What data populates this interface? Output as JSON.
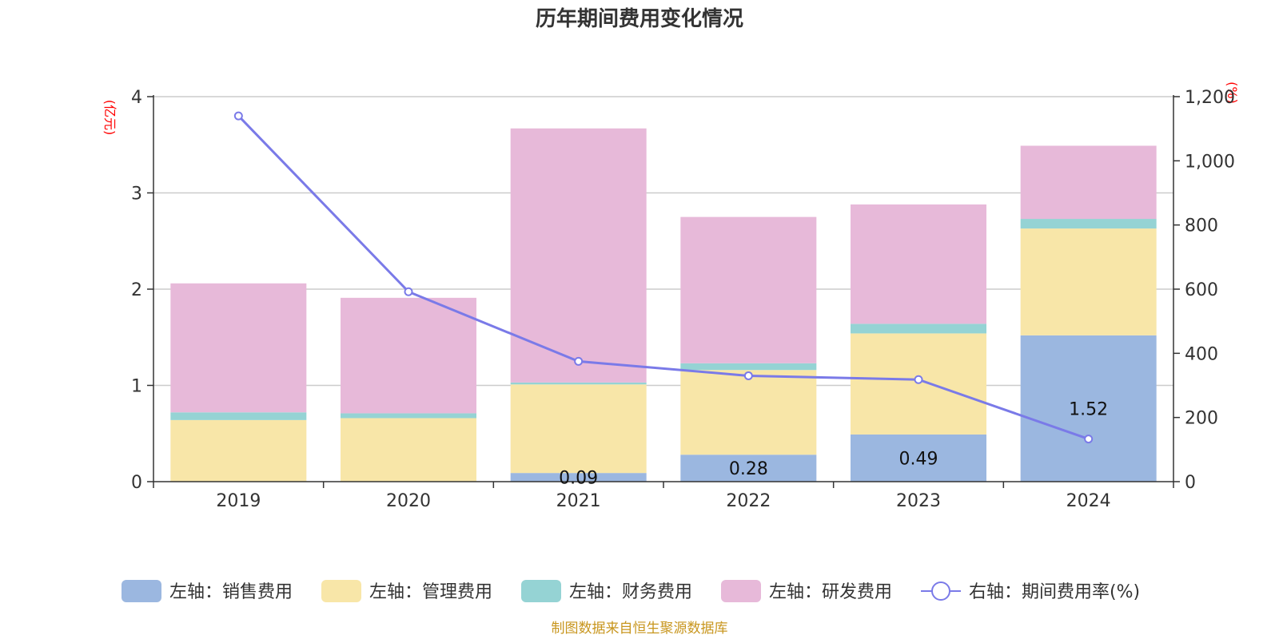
{
  "chart_data": {
    "type": "bar",
    "title": "历年期间费用变化情况",
    "categories": [
      "2019",
      "2020",
      "2021",
      "2022",
      "2023",
      "2024"
    ],
    "left_axis": {
      "unit": "(亿元)",
      "ylim": [
        0,
        4
      ],
      "ticks": [
        "0",
        "1",
        "2",
        "3",
        "4"
      ]
    },
    "right_axis": {
      "unit": "(%)",
      "ylim": [
        0,
        1200
      ],
      "ticks": [
        "0",
        "200",
        "400",
        "600",
        "800",
        "1,000",
        "1,200"
      ]
    },
    "grid": true,
    "series": [
      {
        "name": "左轴：销售费用",
        "kind": "bar",
        "axis": "left",
        "color": "#9bb7e0",
        "values": [
          0,
          0,
          0.09,
          0.28,
          0.49,
          1.52
        ],
        "labels": [
          "",
          "",
          "0.09",
          "0.28",
          "0.49",
          "1.52"
        ]
      },
      {
        "name": "左轴：管理费用",
        "kind": "bar",
        "axis": "left",
        "color": "#f8e6a8",
        "values": [
          0.64,
          0.66,
          0.92,
          0.88,
          1.05,
          1.11
        ]
      },
      {
        "name": "左轴：财务费用",
        "kind": "bar",
        "axis": "left",
        "color": "#95d3d4",
        "values": [
          0.08,
          0.05,
          0.02,
          0.07,
          0.1,
          0.1
        ]
      },
      {
        "name": "左轴：研发费用",
        "kind": "bar",
        "axis": "left",
        "color": "#e7b9d9",
        "values": [
          1.34,
          1.2,
          2.64,
          1.52,
          1.24,
          0.76
        ]
      },
      {
        "name": "右轴：期间费用率(%)",
        "kind": "line",
        "axis": "right",
        "color": "#7a7ae8",
        "values": [
          1140,
          592,
          375,
          330,
          318,
          133
        ]
      }
    ],
    "legend_position": "bottom"
  },
  "source_note": "制图数据来自恒生聚源数据库"
}
